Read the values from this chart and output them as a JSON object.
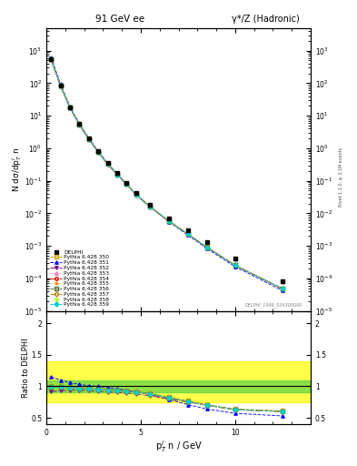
{
  "title_left": "91 GeV ee",
  "title_right": "γ*/Z (Hadronic)",
  "ylabel_main": "N dσ/dp$^i_T$ n",
  "ylabel_ratio": "Ratio to DELPHI",
  "xlabel": "p$^i_T$ n / GeV",
  "right_label": "Rivet 1.1.0, ≥ 3.1M events",
  "watermark": "DELPHI_1996_S34300090",
  "xlim": [
    0,
    14
  ],
  "ylim_main": [
    1e-05,
    5000.0
  ],
  "ylim_ratio": [
    0.4,
    2.2
  ],
  "yticks_ratio": [
    0.5,
    1.0,
    1.5,
    2.0
  ],
  "ytick_labels_ratio": [
    "0.5",
    "1",
    "1.5",
    "2"
  ],
  "x_data": [
    0.25,
    0.75,
    1.25,
    1.75,
    2.25,
    2.75,
    3.25,
    3.75,
    4.25,
    4.75,
    5.5,
    6.5,
    7.5,
    8.5,
    10.0,
    12.5
  ],
  "delphi_y": [
    550,
    85,
    18,
    5.5,
    2.0,
    0.8,
    0.35,
    0.17,
    0.085,
    0.042,
    0.018,
    0.007,
    0.003,
    0.0013,
    0.0004,
    8e-05
  ],
  "delphi_yerr": [
    30,
    5,
    1.2,
    0.4,
    0.15,
    0.06,
    0.025,
    0.012,
    0.006,
    0.003,
    0.0014,
    0.0005,
    0.00025,
    0.0001,
    4e-05,
    9e-06
  ],
  "series": [
    {
      "label": "Pythia 6.428 350",
      "color": "#c8a000",
      "linestyle": "--",
      "marker": "s",
      "markerfacecolor": "none",
      "ratio": [
        1.0,
        1.0,
        0.99,
        0.98,
        0.97,
        0.96,
        0.95,
        0.94,
        0.93,
        0.92,
        0.89,
        0.83,
        0.77,
        0.71,
        0.64,
        0.61
      ]
    },
    {
      "label": "Pythia 6.428 351",
      "color": "#0000ff",
      "linestyle": "--",
      "marker": "^",
      "markerfacecolor": "#0000ff",
      "ratio": [
        1.15,
        1.1,
        1.06,
        1.03,
        1.01,
        1.0,
        0.98,
        0.96,
        0.94,
        0.91,
        0.87,
        0.79,
        0.71,
        0.64,
        0.57,
        0.53
      ]
    },
    {
      "label": "Pythia 6.428 352",
      "color": "#800080",
      "linestyle": "-.",
      "marker": "v",
      "markerfacecolor": "#800080",
      "ratio": [
        0.92,
        0.93,
        0.94,
        0.94,
        0.93,
        0.92,
        0.91,
        0.9,
        0.89,
        0.88,
        0.85,
        0.8,
        0.75,
        0.7,
        0.63,
        0.6
      ]
    },
    {
      "label": "Pythia 6.428 353",
      "color": "#ff69b4",
      "linestyle": ":",
      "marker": "^",
      "markerfacecolor": "none",
      "ratio": [
        0.99,
        0.99,
        0.98,
        0.97,
        0.96,
        0.95,
        0.94,
        0.93,
        0.92,
        0.91,
        0.88,
        0.82,
        0.76,
        0.7,
        0.63,
        0.6
      ]
    },
    {
      "label": "Pythia 6.428 354",
      "color": "#ff0000",
      "linestyle": "-.",
      "marker": "o",
      "markerfacecolor": "none",
      "ratio": [
        0.99,
        0.99,
        0.98,
        0.97,
        0.96,
        0.95,
        0.94,
        0.93,
        0.92,
        0.91,
        0.88,
        0.82,
        0.76,
        0.7,
        0.63,
        0.6
      ]
    },
    {
      "label": "Pythia 6.428 355",
      "color": "#ff8c00",
      "linestyle": ":",
      "marker": "*",
      "markerfacecolor": "#ff8c00",
      "ratio": [
        0.99,
        0.99,
        0.98,
        0.97,
        0.96,
        0.95,
        0.94,
        0.93,
        0.92,
        0.91,
        0.88,
        0.82,
        0.76,
        0.7,
        0.63,
        0.6
      ]
    },
    {
      "label": "Pythia 6.428 356",
      "color": "#556b2f",
      "linestyle": "--",
      "marker": "s",
      "markerfacecolor": "none",
      "ratio": [
        0.99,
        0.99,
        0.98,
        0.97,
        0.96,
        0.95,
        0.94,
        0.93,
        0.92,
        0.91,
        0.88,
        0.82,
        0.76,
        0.7,
        0.63,
        0.6
      ]
    },
    {
      "label": "Pythia 6.428 357",
      "color": "#b8860b",
      "linestyle": "-.",
      "marker": "D",
      "markerfacecolor": "none",
      "ratio": [
        0.99,
        0.99,
        0.98,
        0.97,
        0.96,
        0.95,
        0.94,
        0.93,
        0.92,
        0.91,
        0.88,
        0.82,
        0.76,
        0.7,
        0.63,
        0.6
      ]
    },
    {
      "label": "Pythia 6.428 358",
      "color": "#adff2f",
      "linestyle": ":",
      "marker": "p",
      "markerfacecolor": "#adff2f",
      "ratio": [
        0.99,
        0.99,
        0.98,
        0.97,
        0.96,
        0.95,
        0.94,
        0.93,
        0.92,
        0.91,
        0.88,
        0.82,
        0.76,
        0.7,
        0.63,
        0.6
      ]
    },
    {
      "label": "Pythia 6.428 359",
      "color": "#00ced1",
      "linestyle": "--",
      "marker": "D",
      "markerfacecolor": "#00ced1",
      "ratio": [
        0.99,
        0.99,
        0.98,
        0.97,
        0.96,
        0.95,
        0.94,
        0.93,
        0.92,
        0.91,
        0.88,
        0.82,
        0.76,
        0.7,
        0.63,
        0.6
      ]
    }
  ],
  "band_yellow": [
    0.75,
    1.4
  ],
  "band_green": [
    0.9,
    1.1
  ],
  "bg_color": "#ffffff"
}
